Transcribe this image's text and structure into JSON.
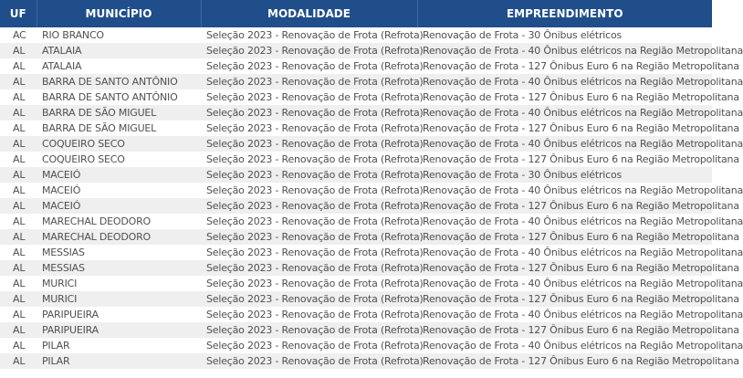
{
  "colors": {
    "header": "#1f4e8a",
    "alt_row": "#efefef",
    "text": "#505050"
  },
  "table": {
    "headers": [
      "UF",
      "MUNICÍPIO",
      "MODALIDADE",
      "EMPREENDIMENTO"
    ],
    "rows": [
      [
        "AC",
        "RIO BRANCO",
        "Seleção 2023 - Renovação de Frota (Refrota)",
        "Renovação de Frota - 30 Ônibus elétricos"
      ],
      [
        "AL",
        "ATALAIA",
        "Seleção 2023 - Renovação de Frota (Refrota)",
        "Renovação de Frota - 40 Ônibus elétricos na Região Metropolitana"
      ],
      [
        "AL",
        "ATALAIA",
        "Seleção 2023 - Renovação de Frota (Refrota)",
        "Renovação de Frota - 127 Ônibus Euro 6 na Região Metropolitana"
      ],
      [
        "AL",
        "BARRA DE SANTO ANTÔNIO",
        "Seleção 2023 - Renovação de Frota (Refrota)",
        "Renovação de Frota - 40 Ônibus elétricos na Região Metropolitana"
      ],
      [
        "AL",
        "BARRA DE SANTO ANTÔNIO",
        "Seleção 2023 - Renovação de Frota (Refrota)",
        "Renovação de Frota - 127 Ônibus Euro 6 na Região Metropolitana"
      ],
      [
        "AL",
        "BARRA DE SÃO MIGUEL",
        "Seleção 2023 - Renovação de Frota (Refrota)",
        "Renovação de Frota - 40 Ônibus elétricos na Região Metropolitana"
      ],
      [
        "AL",
        "BARRA DE SÃO MIGUEL",
        "Seleção 2023 - Renovação de Frota (Refrota)",
        "Renovação de Frota - 127 Ônibus Euro 6 na Região Metropolitana"
      ],
      [
        "AL",
        "COQUEIRO SECO",
        "Seleção 2023 - Renovação de Frota (Refrota)",
        "Renovação de Frota - 40 Ônibus elétricos na Região Metropolitana"
      ],
      [
        "AL",
        "COQUEIRO SECO",
        "Seleção 2023 - Renovação de Frota (Refrota)",
        "Renovação de Frota - 127 Ônibus Euro 6 na Região Metropolitana"
      ],
      [
        "AL",
        "MACEIÓ",
        "Seleção 2023 - Renovação de Frota (Refrota)",
        "Renovação de Frota - 30 Ônibus elétricos"
      ],
      [
        "AL",
        "MACEIÓ",
        "Seleção 2023 - Renovação de Frota (Refrota)",
        "Renovação de Frota - 40 Ônibus elétricos na Região Metropolitana"
      ],
      [
        "AL",
        "MACEIÓ",
        "Seleção 2023 - Renovação de Frota (Refrota)",
        "Renovação de Frota - 127 Ônibus Euro 6 na Região Metropolitana"
      ],
      [
        "AL",
        "MARECHAL DEODORO",
        "Seleção 2023 - Renovação de Frota (Refrota)",
        "Renovação de Frota - 40 Ônibus elétricos na Região Metropolitana"
      ],
      [
        "AL",
        "MARECHAL DEODORO",
        "Seleção 2023 - Renovação de Frota (Refrota)",
        "Renovação de Frota - 127 Ônibus Euro 6 na Região Metropolitana"
      ],
      [
        "AL",
        "MESSIAS",
        "Seleção 2023 - Renovação de Frota (Refrota)",
        "Renovação de Frota - 40 Ônibus elétricos na Região Metropolitana"
      ],
      [
        "AL",
        "MESSIAS",
        "Seleção 2023 - Renovação de Frota (Refrota)",
        "Renovação de Frota - 127 Ônibus Euro 6 na Região Metropolitana"
      ],
      [
        "AL",
        "MURICI",
        "Seleção 2023 - Renovação de Frota (Refrota)",
        "Renovação de Frota - 40 Ônibus elétricos na Região Metropolitana"
      ],
      [
        "AL",
        "MURICI",
        "Seleção 2023 - Renovação de Frota (Refrota)",
        "Renovação de Frota - 127 Ônibus Euro 6 na Região Metropolitana"
      ],
      [
        "AL",
        "PARIPUEIRA",
        "Seleção 2023 - Renovação de Frota (Refrota)",
        "Renovação de Frota - 40 Ônibus elétricos na Região Metropolitana"
      ],
      [
        "AL",
        "PARIPUEIRA",
        "Seleção 2023 - Renovação de Frota (Refrota)",
        "Renovação de Frota - 127 Ônibus Euro 6 na Região Metropolitana"
      ],
      [
        "AL",
        "PILAR",
        "Seleção 2023 - Renovação de Frota (Refrota)",
        "Renovação de Frota - 40 Ônibus elétricos na Região Metropolitana"
      ],
      [
        "AL",
        "PILAR",
        "Seleção 2023 - Renovação de Frota (Refrota)",
        "Renovação de Frota - 127 Ônibus Euro 6 na Região Metropolitana"
      ]
    ]
  }
}
